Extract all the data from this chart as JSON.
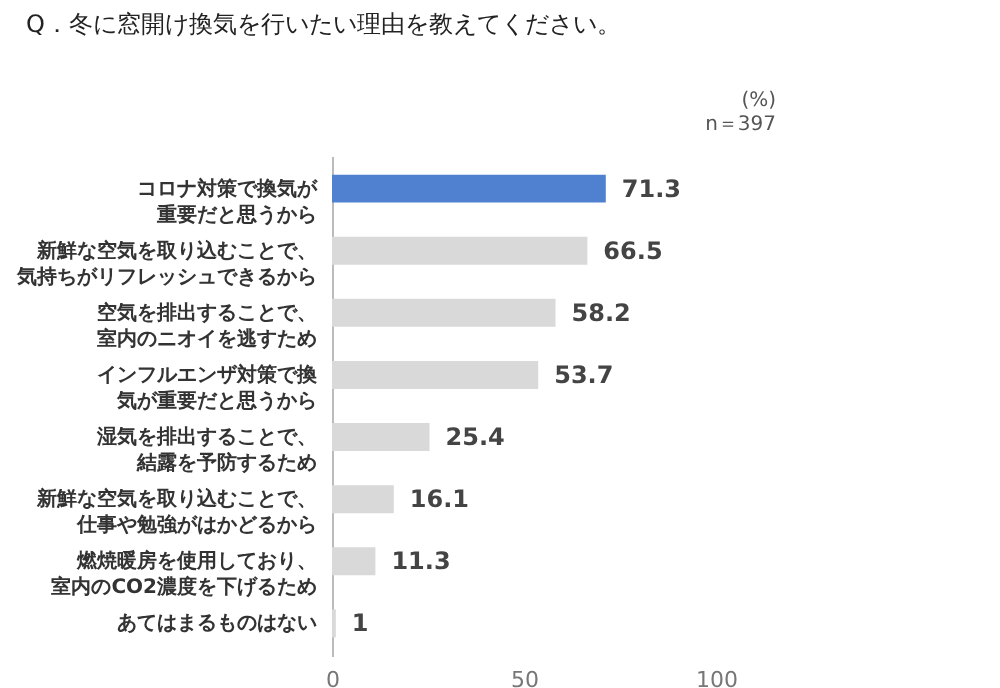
{
  "chart_data": {
    "type": "bar",
    "orientation": "horizontal",
    "title": "Q．冬に窓開け換気を行いたい理由を教えてください。",
    "categories": [
      "コロナ対策で換気が重要だと思うから",
      "新鮮な空気を取り込むことで、気持ちがリフレッシュできるから",
      "空気を排出することで、室内のニオイを逃すため",
      "インフルエンザ対策で換気が重要だと思うから",
      "湿気を排出することで、結露を予防するため",
      "新鮮な空気を取り込むことで、仕事や勉強がはかどるから",
      "燃焼暖房を使用しており、室内のCO2濃度を下げるため",
      "あてはまるものはない"
    ],
    "values": [
      71.3,
      66.5,
      58.2,
      53.7,
      25.4,
      16.1,
      11.3,
      1
    ],
    "colors": [
      "#4f81d0",
      "#d9d9d9",
      "#d9d9d9",
      "#d9d9d9",
      "#d9d9d9",
      "#d9d9d9",
      "#d9d9d9",
      "#d9d9d9"
    ],
    "xlim": [
      0,
      100
    ],
    "xticks": [
      0,
      50,
      100
    ],
    "data_labels": true,
    "grid": false,
    "legend": false,
    "annotations": [
      "(%)",
      "n＝397"
    ]
  }
}
